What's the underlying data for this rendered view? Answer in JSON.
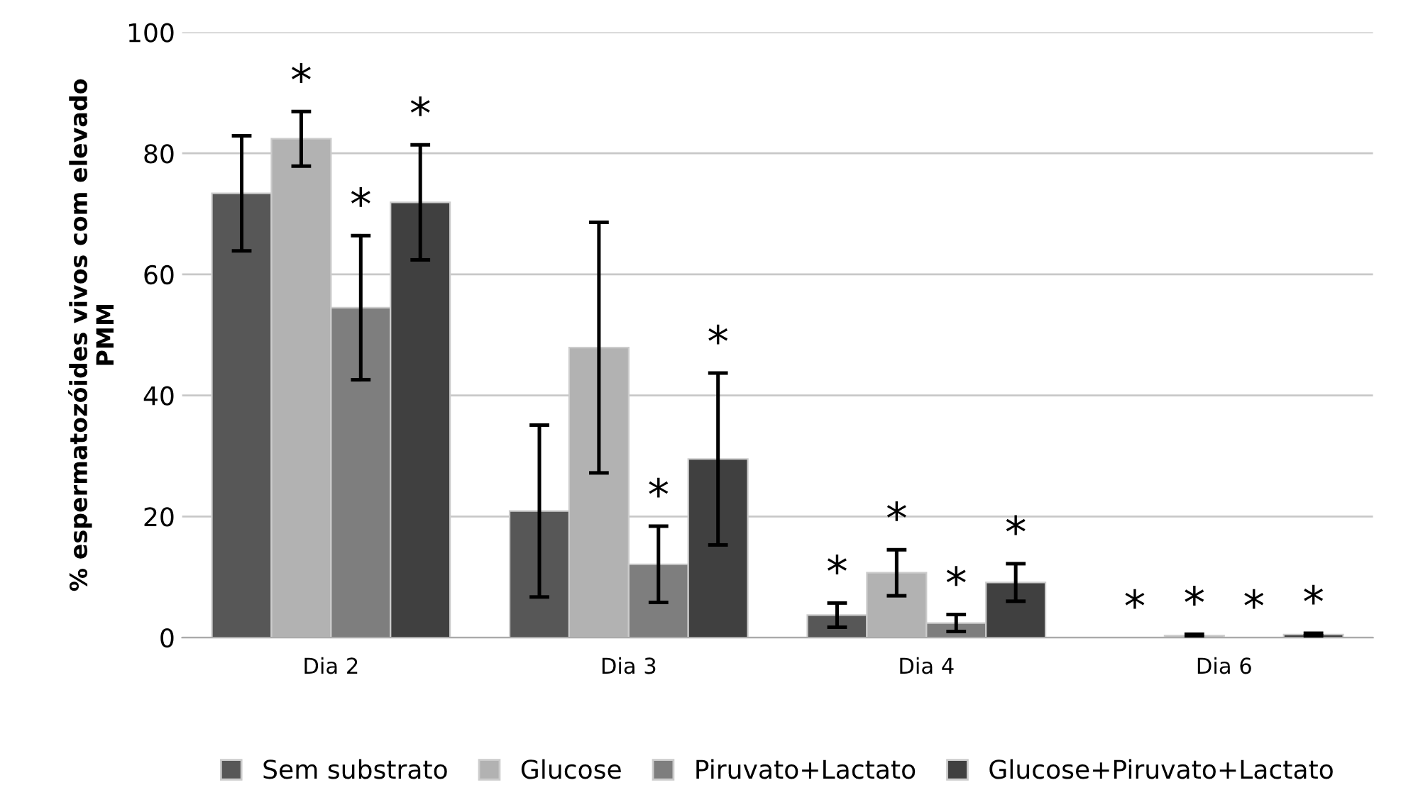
{
  "chart_data": {
    "type": "bar",
    "ylabel": "% espermatozóides vivos com elevado\nPMM",
    "categories": [
      "Dia 2",
      "Dia 3",
      "Dia 4",
      "Dia 6"
    ],
    "series": [
      {
        "name": "Sem substrato",
        "color": "#575757",
        "values": [
          73.4,
          20.9,
          3.7,
          null
        ],
        "errors": [
          9.5,
          14.2,
          2.0,
          null
        ],
        "value_labels": [
          null,
          null,
          "*",
          "*"
        ]
      },
      {
        "name": "Glucose",
        "color": "#b2b2b2",
        "values": [
          82.4,
          47.9,
          10.7,
          0.3
        ],
        "errors": [
          4.5,
          20.7,
          3.8,
          0.25
        ],
        "value_labels": [
          "*",
          null,
          "*",
          "*"
        ]
      },
      {
        "name": "Piruvato+Lactato",
        "color": "#7e7e7e",
        "values": [
          54.5,
          12.1,
          2.4,
          null
        ],
        "errors": [
          11.9,
          6.3,
          1.4,
          null
        ],
        "value_labels": [
          "*",
          "*",
          "*",
          "*"
        ]
      },
      {
        "name": "Glucose+Piruvato+Lactato",
        "color": "#404040",
        "values": [
          71.9,
          29.5,
          9.1,
          0.5
        ],
        "errors": [
          9.5,
          14.2,
          3.1,
          0.2
        ],
        "value_labels": [
          "*",
          "*",
          "*",
          "*"
        ]
      }
    ],
    "ylim": [
      0,
      100
    ],
    "yticks": [
      0,
      20,
      40,
      60,
      80,
      100
    ],
    "grid": "y",
    "legend": "bottom"
  }
}
